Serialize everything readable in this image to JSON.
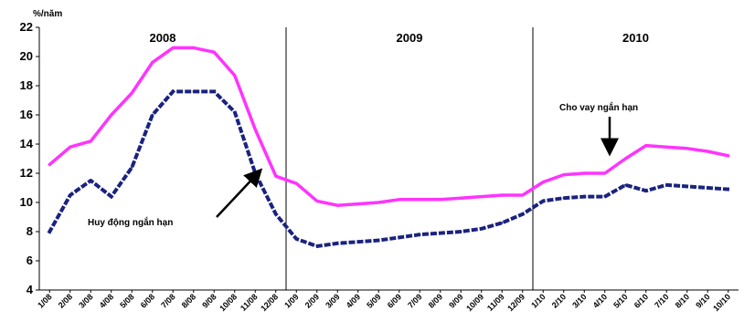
{
  "chart_data": {
    "type": "line",
    "ylabel": "%/năm",
    "ylim": [
      4,
      22
    ],
    "yticks": [
      4,
      6,
      8,
      10,
      12,
      14,
      16,
      18,
      20,
      22
    ],
    "years": [
      "2008",
      "2009",
      "2010"
    ],
    "x": [
      "1/08",
      "2/08",
      "3/08",
      "4/08",
      "5/08",
      "6/08",
      "7/08",
      "8/08",
      "9/08",
      "10/08",
      "11/08",
      "12/08",
      "1/09",
      "2/09",
      "3/09",
      "4/09",
      "5/09",
      "6/09",
      "7/09",
      "8/09",
      "9/09",
      "10/09",
      "11/09",
      "12/09",
      "1/10",
      "2/10",
      "3/10",
      "4/10",
      "5/10",
      "6/10",
      "7/10",
      "8/10",
      "9/10",
      "10/10"
    ],
    "series": [
      {
        "name": "Cho vay ngắn hạn",
        "color": "#ff33ff",
        "style": "solid",
        "values": [
          12.6,
          13.8,
          14.2,
          16.0,
          17.5,
          19.6,
          20.6,
          20.6,
          20.3,
          18.7,
          15.0,
          11.8,
          11.3,
          10.1,
          9.8,
          9.9,
          10.0,
          10.2,
          10.2,
          10.2,
          10.3,
          10.4,
          10.5,
          10.5,
          11.4,
          11.9,
          12.0,
          12.0,
          13.0,
          13.9,
          13.8,
          13.7,
          13.5,
          13.2
        ]
      },
      {
        "name": "Huy động ngắn hạn",
        "color": "#1a237e",
        "style": "dotted",
        "values": [
          8.0,
          10.5,
          11.5,
          10.4,
          12.4,
          16.0,
          17.6,
          17.6,
          17.6,
          16.2,
          12.0,
          9.2,
          7.5,
          7.0,
          7.2,
          7.3,
          7.4,
          7.6,
          7.8,
          7.9,
          8.0,
          8.2,
          8.6,
          9.2,
          10.1,
          10.3,
          10.4,
          10.4,
          11.2,
          10.8,
          11.2,
          11.1,
          11.0,
          10.9
        ]
      }
    ],
    "annotations": [
      {
        "text": "Cho vay ngắn hạn",
        "series": 0
      },
      {
        "text": "Huy động ngắn hạn",
        "series": 1
      }
    ]
  }
}
